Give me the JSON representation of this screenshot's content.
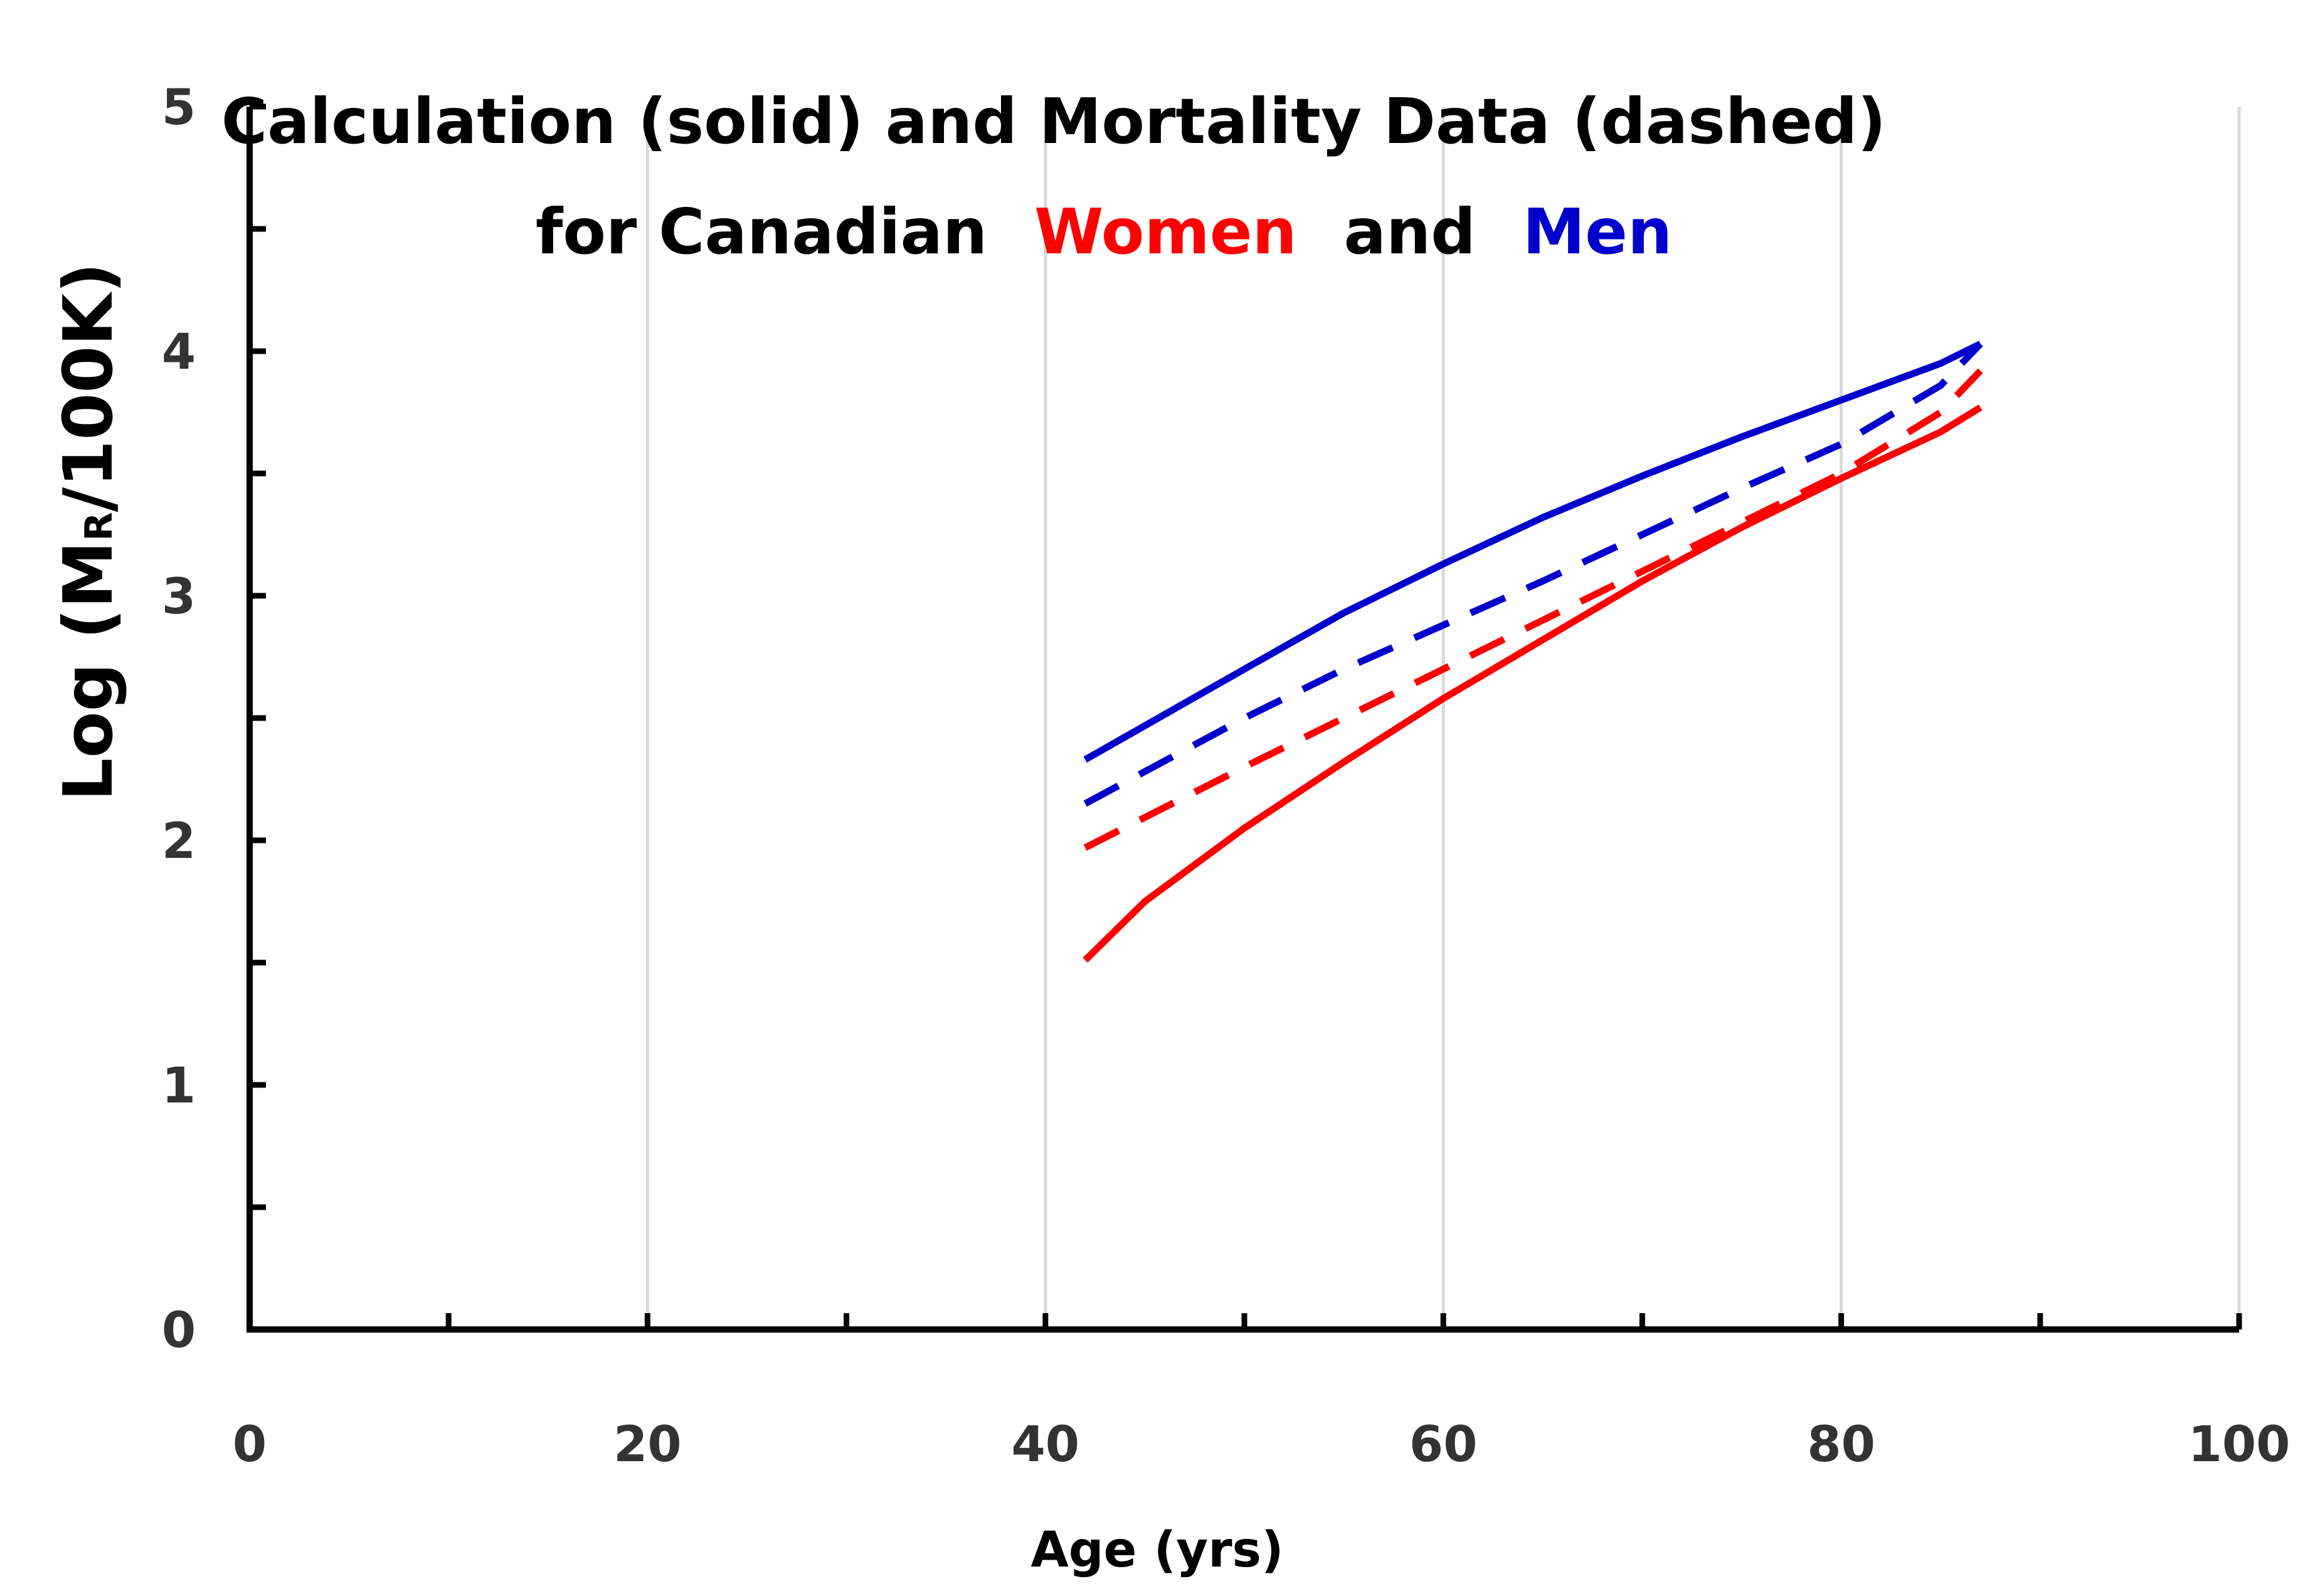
{
  "chart_data": {
    "type": "line",
    "title": {
      "line1": "Calculation  (solid) and Mortality Data  (dashed)",
      "line2_prefix": "for Canadian",
      "women_label": "Women",
      "and_word": "and",
      "men_label": "Men"
    },
    "xlabel": "Age (yrs)",
    "ylabel_prefix": "Log (M",
    "ylabel_subscript": "R",
    "ylabel_suffix": "/100K)",
    "xlim": [
      0,
      100
    ],
    "ylim": [
      0,
      5
    ],
    "xticks": [
      0,
      20,
      40,
      60,
      80,
      100
    ],
    "yticks": [
      0,
      1,
      2,
      3,
      4,
      5
    ],
    "x_minor_step": 10,
    "y_minor_step": 0.5,
    "grid": "vertical",
    "colors": {
      "women": "#ff0000",
      "men": "#0000cc",
      "axis": "#000000",
      "grid": "#d9d9d9"
    },
    "series": [
      {
        "name": "Men calculation",
        "style": "solid",
        "color": "#0000cc",
        "x": [
          42,
          50,
          55,
          60,
          65,
          70,
          75,
          80,
          85,
          87
        ],
        "y": [
          2.33,
          2.7,
          2.93,
          3.13,
          3.32,
          3.49,
          3.65,
          3.8,
          3.95,
          4.03
        ]
      },
      {
        "name": "Men data",
        "style": "dashed",
        "color": "#0000cc",
        "x": [
          42,
          50,
          55,
          60,
          65,
          70,
          75,
          80,
          85,
          87
        ],
        "y": [
          2.15,
          2.5,
          2.7,
          2.88,
          3.06,
          3.25,
          3.44,
          3.62,
          3.86,
          4.03
        ]
      },
      {
        "name": "Women data",
        "style": "dashed",
        "color": "#ff0000",
        "x": [
          42,
          50,
          55,
          60,
          65,
          70,
          75,
          80,
          85,
          87
        ],
        "y": [
          1.97,
          2.3,
          2.5,
          2.7,
          2.9,
          3.1,
          3.3,
          3.5,
          3.75,
          3.92
        ]
      },
      {
        "name": "Women calculation",
        "style": "solid",
        "color": "#ff0000",
        "x": [
          42,
          45,
          50,
          55,
          60,
          65,
          70,
          75,
          80,
          85,
          87
        ],
        "y": [
          1.51,
          1.75,
          2.05,
          2.32,
          2.58,
          2.82,
          3.06,
          3.28,
          3.48,
          3.67,
          3.77
        ]
      }
    ]
  }
}
